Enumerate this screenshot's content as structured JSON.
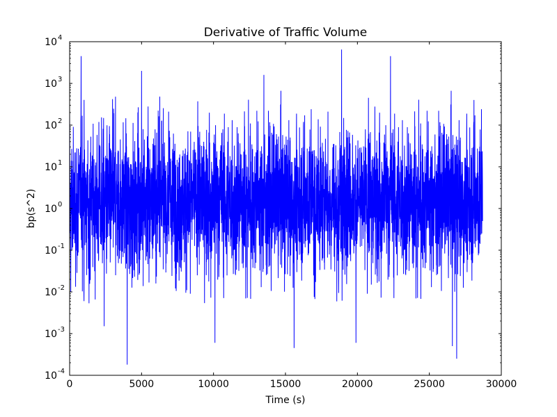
{
  "chart_data": {
    "type": "line",
    "title": "Derivative of Traffic Volume",
    "xlabel": "Time (s)",
    "ylabel": "bp(s^2)",
    "xlim": [
      0,
      30000
    ],
    "ylim": [
      0.0001,
      10000
    ],
    "yscale": "log",
    "grid": false,
    "x_ticks": [
      "0",
      "5000",
      "10000",
      "15000",
      "20000",
      "25000",
      "30000"
    ],
    "y_ticks": [
      {
        "base": "10",
        "exp": "-4"
      },
      {
        "base": "10",
        "exp": "-3"
      },
      {
        "base": "10",
        "exp": "-2"
      },
      {
        "base": "10",
        "exp": "-1"
      },
      {
        "base": "10",
        "exp": "0"
      },
      {
        "base": "10",
        "exp": "1"
      },
      {
        "base": "10",
        "exp": "2"
      },
      {
        "base": "10",
        "exp": "3"
      },
      {
        "base": "10",
        "exp": "4"
      }
    ],
    "series": [
      {
        "color": "#0000ff",
        "x_range": [
          0,
          28700
        ],
        "typical_range": [
          0.05,
          50
        ],
        "points": [
          {
            "x": 0,
            "y": 200
          },
          {
            "x": 80,
            "y": 0.01
          },
          {
            "x": 300,
            "y": 0.3
          },
          {
            "x": 800,
            "y": 4500
          },
          {
            "x": 1000,
            "y": 0.006
          },
          {
            "x": 2400,
            "y": 0.0015
          },
          {
            "x": 4000,
            "y": 0.00018
          },
          {
            "x": 5000,
            "y": 2000
          },
          {
            "x": 10100,
            "y": 0.0006
          },
          {
            "x": 13500,
            "y": 1600
          },
          {
            "x": 15600,
            "y": 0.00045
          },
          {
            "x": 18900,
            "y": 6500
          },
          {
            "x": 19900,
            "y": 0.0006
          },
          {
            "x": 22300,
            "y": 4500
          },
          {
            "x": 26600,
            "y": 0.0005
          },
          {
            "x": 26900,
            "y": 0.00025
          },
          {
            "x": 28100,
            "y": 400
          },
          {
            "x": 28700,
            "y": 0.5
          }
        ]
      }
    ]
  }
}
